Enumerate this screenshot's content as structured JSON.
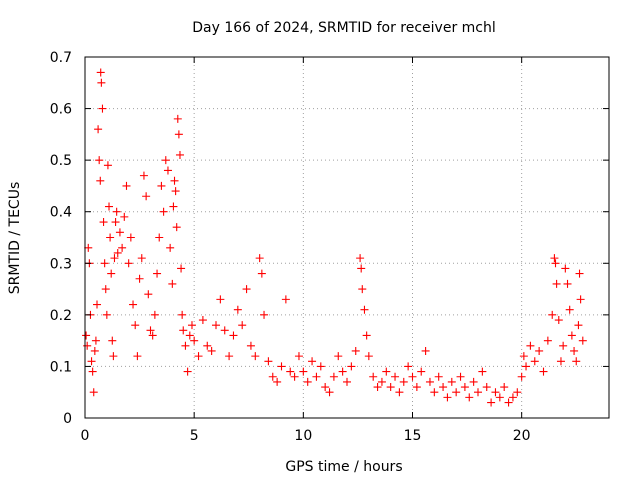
{
  "chart_data": {
    "type": "scatter",
    "title": "Day 166 of 2024, SRMTID for receiver mchl",
    "xlabel": "GPS time / hours",
    "ylabel": "SRMTID / TECUs",
    "xlim": [
      0,
      24
    ],
    "ylim": [
      0,
      0.7
    ],
    "xticks": [
      0,
      5,
      10,
      15,
      20
    ],
    "xtick_labels": [
      "0",
      "5",
      "10",
      "15",
      "20"
    ],
    "yticks": [
      0,
      0.1,
      0.2,
      0.3,
      0.4,
      0.5,
      0.6,
      0.7
    ],
    "ytick_labels": [
      "0",
      "0.1",
      "0.2",
      "0.3",
      "0.4",
      "0.5",
      "0.6",
      "0.7"
    ],
    "grid": true,
    "marker": "+",
    "series": [
      {
        "name": "SRMTID",
        "color": "#ff0000",
        "points": [
          [
            0.05,
            0.16
          ],
          [
            0.1,
            0.14
          ],
          [
            0.15,
            0.33
          ],
          [
            0.2,
            0.3
          ],
          [
            0.25,
            0.2
          ],
          [
            0.3,
            0.11
          ],
          [
            0.35,
            0.09
          ],
          [
            0.4,
            0.05
          ],
          [
            0.45,
            0.13
          ],
          [
            0.5,
            0.15
          ],
          [
            0.55,
            0.22
          ],
          [
            0.6,
            0.56
          ],
          [
            0.65,
            0.5
          ],
          [
            0.7,
            0.46
          ],
          [
            0.72,
            0.67
          ],
          [
            0.75,
            0.65
          ],
          [
            0.8,
            0.6
          ],
          [
            0.85,
            0.38
          ],
          [
            0.9,
            0.3
          ],
          [
            0.95,
            0.25
          ],
          [
            1.0,
            0.2
          ],
          [
            1.05,
            0.49
          ],
          [
            1.1,
            0.41
          ],
          [
            1.15,
            0.35
          ],
          [
            1.2,
            0.28
          ],
          [
            1.25,
            0.15
          ],
          [
            1.3,
            0.12
          ],
          [
            1.35,
            0.31
          ],
          [
            1.4,
            0.38
          ],
          [
            1.45,
            0.4
          ],
          [
            1.5,
            0.32
          ],
          [
            1.6,
            0.36
          ],
          [
            1.7,
            0.33
          ],
          [
            1.8,
            0.39
          ],
          [
            1.9,
            0.45
          ],
          [
            2.0,
            0.3
          ],
          [
            2.1,
            0.35
          ],
          [
            2.2,
            0.22
          ],
          [
            2.3,
            0.18
          ],
          [
            2.4,
            0.12
          ],
          [
            2.5,
            0.27
          ],
          [
            2.6,
            0.31
          ],
          [
            2.7,
            0.47
          ],
          [
            2.8,
            0.43
          ],
          [
            2.9,
            0.24
          ],
          [
            3.0,
            0.17
          ],
          [
            3.1,
            0.16
          ],
          [
            3.2,
            0.2
          ],
          [
            3.3,
            0.28
          ],
          [
            3.4,
            0.35
          ],
          [
            3.5,
            0.45
          ],
          [
            3.6,
            0.4
          ],
          [
            3.7,
            0.5
          ],
          [
            3.8,
            0.48
          ],
          [
            3.9,
            0.33
          ],
          [
            4.0,
            0.26
          ],
          [
            4.05,
            0.41
          ],
          [
            4.1,
            0.46
          ],
          [
            4.15,
            0.44
          ],
          [
            4.2,
            0.37
          ],
          [
            4.25,
            0.58
          ],
          [
            4.3,
            0.55
          ],
          [
            4.35,
            0.51
          ],
          [
            4.4,
            0.29
          ],
          [
            4.45,
            0.2
          ],
          [
            4.5,
            0.17
          ],
          [
            4.6,
            0.14
          ],
          [
            4.7,
            0.09
          ],
          [
            4.8,
            0.16
          ],
          [
            4.9,
            0.18
          ],
          [
            5.0,
            0.15
          ],
          [
            5.2,
            0.12
          ],
          [
            5.4,
            0.19
          ],
          [
            5.6,
            0.14
          ],
          [
            5.8,
            0.13
          ],
          [
            6.0,
            0.18
          ],
          [
            6.2,
            0.23
          ],
          [
            6.4,
            0.17
          ],
          [
            6.6,
            0.12
          ],
          [
            6.8,
            0.16
          ],
          [
            7.0,
            0.21
          ],
          [
            7.2,
            0.18
          ],
          [
            7.4,
            0.25
          ],
          [
            7.6,
            0.14
          ],
          [
            7.8,
            0.12
          ],
          [
            8.0,
            0.31
          ],
          [
            8.1,
            0.28
          ],
          [
            8.2,
            0.2
          ],
          [
            8.4,
            0.11
          ],
          [
            8.6,
            0.08
          ],
          [
            8.8,
            0.07
          ],
          [
            9.0,
            0.1
          ],
          [
            9.2,
            0.23
          ],
          [
            9.4,
            0.09
          ],
          [
            9.6,
            0.08
          ],
          [
            9.8,
            0.12
          ],
          [
            10.0,
            0.09
          ],
          [
            10.2,
            0.07
          ],
          [
            10.4,
            0.11
          ],
          [
            10.6,
            0.08
          ],
          [
            10.8,
            0.1
          ],
          [
            11.0,
            0.06
          ],
          [
            11.2,
            0.05
          ],
          [
            11.4,
            0.08
          ],
          [
            11.6,
            0.12
          ],
          [
            11.8,
            0.09
          ],
          [
            12.0,
            0.07
          ],
          [
            12.2,
            0.1
          ],
          [
            12.4,
            0.13
          ],
          [
            12.6,
            0.31
          ],
          [
            12.65,
            0.29
          ],
          [
            12.7,
            0.25
          ],
          [
            12.8,
            0.21
          ],
          [
            12.9,
            0.16
          ],
          [
            13.0,
            0.12
          ],
          [
            13.2,
            0.08
          ],
          [
            13.4,
            0.06
          ],
          [
            13.6,
            0.07
          ],
          [
            13.8,
            0.09
          ],
          [
            14.0,
            0.06
          ],
          [
            14.2,
            0.08
          ],
          [
            14.4,
            0.05
          ],
          [
            14.6,
            0.07
          ],
          [
            14.8,
            0.1
          ],
          [
            15.0,
            0.08
          ],
          [
            15.2,
            0.06
          ],
          [
            15.4,
            0.09
          ],
          [
            15.6,
            0.13
          ],
          [
            15.8,
            0.07
          ],
          [
            16.0,
            0.05
          ],
          [
            16.2,
            0.08
          ],
          [
            16.4,
            0.06
          ],
          [
            16.6,
            0.04
          ],
          [
            16.8,
            0.07
          ],
          [
            17.0,
            0.05
          ],
          [
            17.2,
            0.08
          ],
          [
            17.4,
            0.06
          ],
          [
            17.6,
            0.04
          ],
          [
            17.8,
            0.07
          ],
          [
            18.0,
            0.05
          ],
          [
            18.2,
            0.09
          ],
          [
            18.4,
            0.06
          ],
          [
            18.6,
            0.03
          ],
          [
            18.8,
            0.05
          ],
          [
            19.0,
            0.04
          ],
          [
            19.2,
            0.06
          ],
          [
            19.4,
            0.03
          ],
          [
            19.6,
            0.04
          ],
          [
            19.8,
            0.05
          ],
          [
            20.0,
            0.08
          ],
          [
            20.1,
            0.12
          ],
          [
            20.2,
            0.1
          ],
          [
            20.4,
            0.14
          ],
          [
            20.6,
            0.11
          ],
          [
            20.8,
            0.13
          ],
          [
            21.0,
            0.09
          ],
          [
            21.2,
            0.15
          ],
          [
            21.4,
            0.2
          ],
          [
            21.5,
            0.31
          ],
          [
            21.55,
            0.3
          ],
          [
            21.6,
            0.26
          ],
          [
            21.7,
            0.19
          ],
          [
            21.8,
            0.11
          ],
          [
            21.9,
            0.14
          ],
          [
            22.0,
            0.29
          ],
          [
            22.1,
            0.26
          ],
          [
            22.2,
            0.21
          ],
          [
            22.3,
            0.16
          ],
          [
            22.4,
            0.13
          ],
          [
            22.5,
            0.11
          ],
          [
            22.6,
            0.18
          ],
          [
            22.65,
            0.28
          ],
          [
            22.7,
            0.23
          ],
          [
            22.8,
            0.15
          ]
        ]
      }
    ]
  }
}
